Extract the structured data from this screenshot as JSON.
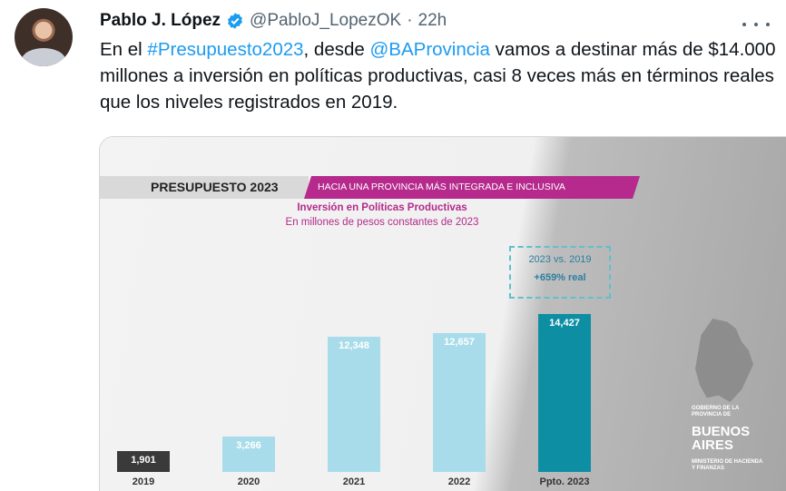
{
  "tweet": {
    "author_name": "Pablo J. López",
    "handle": "@PabloJ_LopezOK",
    "separator": "·",
    "time": "22h",
    "text_parts": {
      "p1": "En el ",
      "hashtag": "#Presupuesto2023",
      "p2": ", desde ",
      "mention": "@BAProvincia",
      "p3": " vamos a destinar más de $14.000 millones a inversión en políticas productivas, casi 8 veces más en términos reales que los niveles registrados en 2019."
    }
  },
  "image": {
    "banner_title": "PRESUPUESTO 2023",
    "banner_subtitle": "HACIA UNA PROVINCIA MÁS INTEGRADA E INCLUSIVA",
    "logo_top": "GOBIERNO DE LA PROVINCIA DE",
    "logo_big_1": "BUENOS",
    "logo_big_2": "AIRES",
    "logo_bottom": "MINISTERIO DE HACIENDA Y FINANZAS",
    "colors": {
      "accent": "#b52a8c",
      "bar_light": "#a9dcea",
      "bar_dark": "#3a3a3a",
      "bar_highlight": "#0e8ea3"
    }
  },
  "chart_data": {
    "type": "bar",
    "title": "Inversión en Políticas Productivas",
    "subtitle": "En millones de pesos constantes de 2023",
    "categories": [
      "2019",
      "2020",
      "2021",
      "2022",
      "Ppto. 2023"
    ],
    "values": [
      1901,
      3266,
      12348,
      12657,
      14427
    ],
    "value_labels": [
      "1,901",
      "3,266",
      "12,348",
      "12,657",
      "14,427"
    ],
    "annotation": {
      "line1": "2023 vs. 2019",
      "line2": "+659% real"
    },
    "ylim": [
      0,
      15000
    ]
  }
}
